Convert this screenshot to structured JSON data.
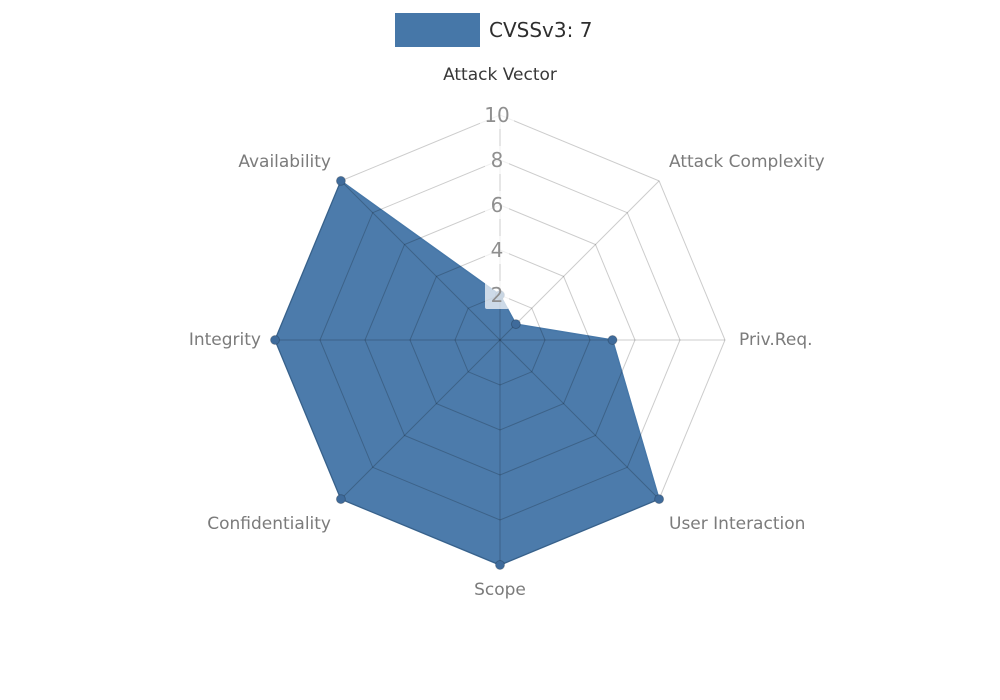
{
  "legend": {
    "label": "CVSSv3: 7"
  },
  "chart_data": {
    "type": "radar",
    "title": "CVSSv3: 7",
    "categories": [
      "Attack Vector",
      "Attack Complexity",
      "Priv.Req.",
      "User Interaction",
      "Scope",
      "Confidentiality",
      "Integrity",
      "Availability"
    ],
    "series": [
      {
        "name": "CVSSv3: 7",
        "color": "#4677A8",
        "marker_color": "#3F6B9B",
        "values": [
          2,
          1,
          5,
          10,
          10,
          10,
          10,
          10
        ]
      }
    ],
    "rmax": 10,
    "rticks": [
      2,
      4,
      6,
      8,
      10
    ],
    "tick_color": "#8F8F8F",
    "tick_box_fill": "rgba(255,255,255,0.72)",
    "grid_color": "rgba(0,0,0,0.2)",
    "category_colors": [
      "#383838",
      "#7B7B7B",
      "#7B7B7B",
      "#7B7B7B",
      "#7B7B7B",
      "#7B7B7B",
      "#7B7B7B",
      "#7B7B7B"
    ],
    "legend_position": "top",
    "grid": true
  }
}
